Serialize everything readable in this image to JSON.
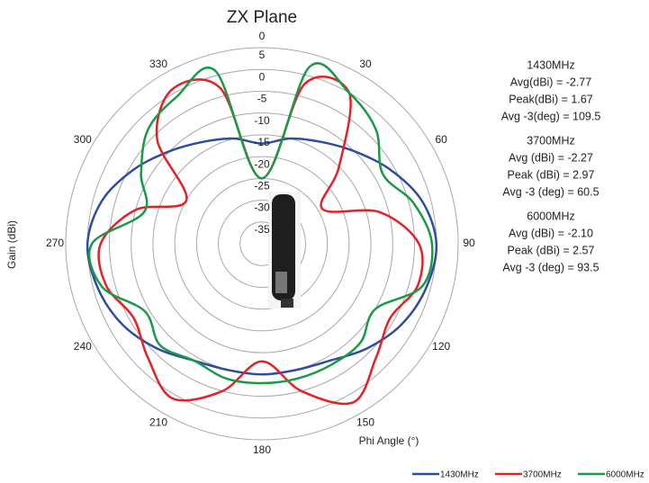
{
  "chart_data": {
    "type": "polar",
    "title": "ZX Plane",
    "x_label": "Phi Angle (°)",
    "y_label": "Gain (dBi)",
    "x": [
      0,
      15,
      30,
      45,
      60,
      75,
      90,
      105,
      120,
      135,
      150,
      165,
      180,
      195,
      210,
      225,
      240,
      255,
      270,
      285,
      300,
      315,
      330,
      345
    ],
    "series": [
      {
        "name": "1430MHz",
        "color": "#2e4da0",
        "values": [
          -17,
          -15,
          -13,
          -10,
          -6,
          -2,
          0,
          -1,
          -3,
          -6,
          -9,
          -10,
          -10,
          -10,
          -9,
          -6,
          -3,
          -1,
          0,
          -2,
          -6,
          -10,
          -13,
          -15
        ]
      },
      {
        "name": "3700MHz",
        "color": "#e32228",
        "values": [
          -25,
          -2,
          0,
          -15,
          -24,
          -12,
          -4,
          -3,
          -6,
          -3,
          2,
          -5,
          -13,
          -5,
          1,
          -3,
          -6,
          -3,
          -3,
          -10,
          -20,
          -6,
          1,
          -3
        ]
      },
      {
        "name": "6000MHz",
        "color": "#1a9a48",
        "values": [
          -25,
          2,
          0,
          -3,
          -8,
          -4,
          -1,
          -2,
          -10,
          -8,
          -8,
          -8,
          -8,
          -8,
          -9,
          -7,
          -9,
          -2,
          -1,
          -12,
          -8,
          -3,
          -1,
          1
        ]
      }
    ],
    "ylim": [
      -40,
      5
    ],
    "yticks": [
      5,
      0,
      -5,
      -10,
      -15,
      -20,
      -25,
      -30,
      -35
    ],
    "xticks": [
      0,
      30,
      60,
      90,
      120,
      150,
      180,
      210,
      240,
      270,
      300,
      330
    ],
    "grid": true,
    "annotations": [
      "1430MHz",
      "Avg(dBi) = -2.77",
      "Peak(dBi) = 1.67",
      "Avg -3(deg) = 109.5",
      "3700MHz",
      "Avg (dBi) = -2.27",
      "Peak (dBi) = 2.97",
      "Avg -3 (deg) = 60.5",
      "6000MHz",
      "Avg (dBi) = -2.10",
      "Peak (dBi) = 2.57",
      "Avg -3 (deg) = 93.5"
    ]
  }
}
